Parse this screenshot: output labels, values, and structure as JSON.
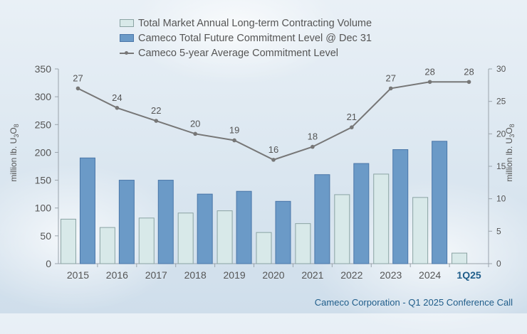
{
  "chart_data": {
    "type": "bar",
    "categories": [
      "2015",
      "2016",
      "2017",
      "2018",
      "2019",
      "2020",
      "2021",
      "2022",
      "2023",
      "2024",
      "1Q25"
    ],
    "series": [
      {
        "name": "Total Market Annual Long-term Contracting Volume",
        "axis": "left",
        "values": [
          80,
          65,
          82,
          91,
          95,
          56,
          72,
          124,
          161,
          119,
          19
        ]
      },
      {
        "name": "Cameco Total Future Commitment Level @ Dec 31",
        "axis": "left",
        "values": [
          190,
          150,
          150,
          125,
          130,
          112,
          160,
          180,
          205,
          220,
          null
        ]
      },
      {
        "name": "Cameco 5-year Average Commitment Level",
        "axis": "right",
        "type": "line",
        "values": [
          27,
          24,
          22,
          20,
          19,
          16,
          18,
          21,
          27,
          28,
          28
        ]
      }
    ],
    "y_left": {
      "min": 0,
      "max": 350,
      "ticks": [
        0,
        50,
        100,
        150,
        200,
        250,
        300,
        350
      ],
      "label_main": "million lb. U",
      "label_sub1": "3",
      "label_mid": "O",
      "label_sub2": "8"
    },
    "y_right": {
      "min": 0,
      "max": 30,
      "ticks": [
        0,
        5,
        10,
        15,
        20,
        25,
        30
      ],
      "label_main": "million lb. U",
      "label_sub1": "3",
      "label_mid": "O",
      "label_sub2": "8"
    },
    "highlight_category": "1Q25",
    "colors": {
      "market": "#d8e9e9",
      "market_border": "#8aa3a3",
      "cameco": "#6b9ac7",
      "cameco_border": "#4a76a8",
      "line": "#777777",
      "highlight": "#1f5d8a",
      "text": "#555555"
    }
  },
  "footer": "Cameco Corporation  - Q1 2025 Conference Call"
}
